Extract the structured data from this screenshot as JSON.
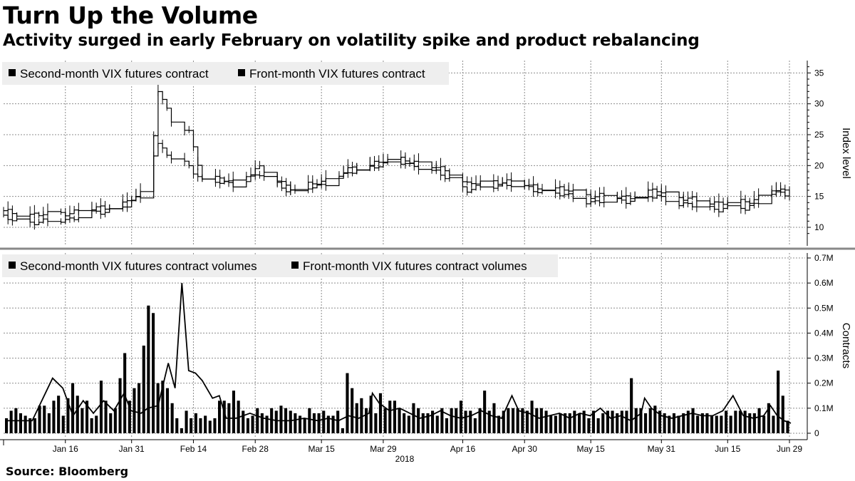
{
  "title": "Turn Up the Volume",
  "subtitle": "Activity surged in early February on volatility spike and product rebalancing",
  "source": "Source: Bloomberg",
  "colors": {
    "series": "#000000",
    "grid": "#8c8c8c",
    "legend_bg": "#eeeeee",
    "separator": "#888888"
  },
  "chart_data": [
    {
      "type": "line",
      "ylabel": "Index level",
      "ylim": [
        7,
        37
      ],
      "yticks": [
        "10",
        "15",
        "20",
        "25",
        "30",
        "35"
      ],
      "x_start": "2018-01-02",
      "x_end": "2018-06-29",
      "x_tick_dates": [
        "2018-01-16",
        "2018-01-31",
        "2018-02-14",
        "2018-02-28",
        "2018-03-15",
        "2018-03-29",
        "2018-04-16",
        "2018-04-30",
        "2018-05-15",
        "2018-05-31",
        "2018-06-15",
        "2018-06-29"
      ],
      "x_tick_labels": [
        "Jan 16",
        "Jan 31",
        "Feb 14",
        "Feb 28",
        "Mar 15",
        "Mar 29",
        "Apr 16",
        "Apr 30",
        "May 15",
        "May 31",
        "Jun 15",
        "Jun 29"
      ],
      "year_label": "2018",
      "grid": true,
      "legend": "top-left",
      "series": [
        {
          "name": "Second-month VIX futures contract",
          "x": [
            "2018-01-02",
            "2018-01-10",
            "2018-01-18",
            "2018-01-24",
            "2018-01-30",
            "2018-02-02",
            "2018-02-05",
            "2018-02-06",
            "2018-02-09",
            "2018-02-13",
            "2018-02-16",
            "2018-02-23",
            "2018-03-01",
            "2018-03-09",
            "2018-03-19",
            "2018-03-22",
            "2018-03-27",
            "2018-04-03",
            "2018-04-13",
            "2018-04-17",
            "2018-04-25",
            "2018-05-03",
            "2018-05-10",
            "2018-05-16",
            "2018-05-25",
            "2018-05-30",
            "2018-06-06",
            "2018-06-13",
            "2018-06-19",
            "2018-06-25",
            "2018-06-29"
          ],
          "y": [
            12.5,
            12.0,
            12.5,
            13.2,
            14.0,
            15.5,
            25.0,
            32.5,
            27.0,
            25.5,
            18.0,
            17.5,
            19.5,
            16.0,
            18.5,
            19.5,
            20.5,
            21.0,
            19.0,
            17.0,
            17.5,
            16.5,
            16.0,
            15.0,
            15.0,
            16.0,
            14.5,
            14.0,
            14.0,
            16.0,
            15.6
          ]
        },
        {
          "name": "Front-month VIX futures contract",
          "x": [
            "2018-01-02",
            "2018-01-10",
            "2018-01-18",
            "2018-01-24",
            "2018-01-30",
            "2018-02-02",
            "2018-02-05",
            "2018-02-06",
            "2018-02-09",
            "2018-02-13",
            "2018-02-16",
            "2018-02-23",
            "2018-03-01",
            "2018-03-09",
            "2018-03-19",
            "2018-03-22",
            "2018-03-27",
            "2018-04-03",
            "2018-04-13",
            "2018-04-17",
            "2018-04-25",
            "2018-05-03",
            "2018-05-10",
            "2018-05-16",
            "2018-05-25",
            "2018-05-30",
            "2018-06-06",
            "2018-06-13",
            "2018-06-19",
            "2018-06-25",
            "2018-06-29"
          ],
          "y": [
            11.5,
            10.7,
            11.5,
            12.5,
            13.5,
            15.0,
            22.0,
            23.5,
            21.0,
            20.0,
            17.5,
            17.0,
            18.5,
            15.5,
            18.0,
            19.0,
            20.0,
            20.5,
            18.0,
            16.0,
            17.0,
            16.0,
            15.0,
            14.0,
            14.5,
            15.0,
            13.5,
            13.0,
            13.0,
            15.5,
            15.3
          ]
        }
      ]
    },
    {
      "type": "bar",
      "ylabel": "Contracts",
      "ylim": [
        -0.02,
        0.72
      ],
      "yticks": [
        "0",
        "0.1M",
        "0.2M",
        "0.3M",
        "0.4M",
        "0.5M",
        "0.6M",
        "0.7M"
      ],
      "yunit": "M",
      "grid": true,
      "legend": "top-left",
      "bar_series": {
        "name": "Second-month VIX futures contract volumes",
        "values": [
          0.06,
          0.09,
          0.1,
          0.08,
          0.07,
          0.06,
          0.06,
          0.11,
          0.11,
          0.08,
          0.13,
          0.15,
          0.07,
          0.14,
          0.2,
          0.15,
          0.1,
          0.13,
          0.06,
          0.07,
          0.21,
          0.13,
          0.08,
          0.1,
          0.22,
          0.32,
          0.13,
          0.18,
          0.2,
          0.35,
          0.51,
          0.48,
          0.2,
          0.21,
          0.18,
          0.12,
          0.06,
          0.02,
          0.09,
          0.06,
          0.08,
          0.06,
          0.07,
          0.05,
          0.06,
          0.13,
          0.13,
          0.12,
          0.17,
          0.13,
          0.09,
          0.06,
          0.07,
          0.1,
          0.08,
          0.07,
          0.1,
          0.09,
          0.11,
          0.1,
          0.09,
          0.08,
          0.07,
          0.06,
          0.1,
          0.08,
          0.08,
          0.09,
          0.07,
          0.07,
          0.09,
          0.02,
          0.24,
          0.18,
          0.12,
          0.14,
          0.1,
          0.15,
          0.08,
          0.16,
          0.1,
          0.13,
          0.13,
          0.1,
          0.08,
          0.07,
          0.12,
          0.1,
          0.08,
          0.08,
          0.09,
          0.07,
          0.1,
          0.06,
          0.1,
          0.1,
          0.13,
          0.09,
          0.09,
          0.06,
          0.1,
          0.17,
          0.09,
          0.12,
          0.07,
          0.09,
          0.1,
          0.1,
          0.1,
          0.1,
          0.09,
          0.13,
          0.1,
          0.1,
          0.09,
          0.07,
          0.07,
          0.08,
          0.08,
          0.08,
          0.09,
          0.08,
          0.09,
          0.06,
          0.09,
          0.06,
          0.08,
          0.09,
          0.09,
          0.08,
          0.09,
          0.09,
          0.22,
          0.1,
          0.1,
          0.08,
          0.1,
          0.11,
          0.09,
          0.08,
          0.07,
          0.08,
          0.07,
          0.08,
          0.09,
          0.1,
          0.07,
          0.08,
          0.08,
          0.07,
          0.07,
          0.07,
          0.09,
          0.07,
          0.09,
          0.09,
          0.09,
          0.08,
          0.08,
          0.1,
          0.07,
          0.12,
          0.07,
          0.25,
          0.15,
          0.05
        ]
      },
      "line_series": {
        "name": "Front-month VIX futures contract volumes",
        "points": [
          [
            0,
            0.05
          ],
          [
            8,
            0.05
          ],
          [
            14,
            0.22
          ],
          [
            17,
            0.18
          ],
          [
            20,
            0.07
          ],
          [
            23,
            0.13
          ],
          [
            26,
            0.08
          ],
          [
            29,
            0.13
          ],
          [
            32,
            0.09
          ],
          [
            35,
            0.16
          ],
          [
            37,
            0.09
          ],
          [
            40,
            0.08
          ],
          [
            42,
            0.1
          ],
          [
            45,
            0.11
          ],
          [
            48,
            0.28
          ],
          [
            50,
            0.18
          ],
          [
            52,
            0.6
          ],
          [
            54,
            0.25
          ],
          [
            56,
            0.24
          ],
          [
            58,
            0.21
          ],
          [
            61,
            0.14
          ],
          [
            63,
            0.15
          ],
          [
            65,
            0.06
          ],
          [
            68,
            0.06
          ],
          [
            72,
            0.08
          ],
          [
            76,
            0.06
          ],
          [
            80,
            0.05
          ],
          [
            84,
            0.05
          ],
          [
            88,
            0.06
          ],
          [
            92,
            0.05
          ],
          [
            95,
            0.06
          ],
          [
            98,
            0.05
          ],
          [
            101,
            0.07
          ],
          [
            104,
            0.06
          ],
          [
            107,
            0.08
          ],
          [
            108,
            0.16
          ],
          [
            110,
            0.12
          ],
          [
            113,
            0.09
          ],
          [
            116,
            0.1
          ],
          [
            119,
            0.08
          ],
          [
            122,
            0.06
          ],
          [
            125,
            0.07
          ],
          [
            128,
            0.09
          ],
          [
            131,
            0.07
          ],
          [
            134,
            0.06
          ],
          [
            137,
            0.07
          ],
          [
            140,
            0.09
          ],
          [
            143,
            0.07
          ],
          [
            146,
            0.06
          ],
          [
            149,
            0.15
          ],
          [
            151,
            0.09
          ],
          [
            154,
            0.08
          ],
          [
            157,
            0.06
          ],
          [
            160,
            0.07
          ],
          [
            163,
            0.08
          ],
          [
            166,
            0.06
          ],
          [
            169,
            0.08
          ],
          [
            172,
            0.07
          ],
          [
            175,
            0.1
          ],
          [
            178,
            0.06
          ],
          [
            181,
            0.07
          ],
          [
            184,
            0.05
          ],
          [
            187,
            0.08
          ],
          [
            188,
            0.14
          ],
          [
            190,
            0.1
          ],
          [
            193,
            0.07
          ],
          [
            196,
            0.06
          ],
          [
            199,
            0.07
          ],
          [
            202,
            0.08
          ],
          [
            205,
            0.07
          ],
          [
            208,
            0.07
          ],
          [
            211,
            0.09
          ],
          [
            214,
            0.15
          ],
          [
            217,
            0.07
          ],
          [
            220,
            0.06
          ],
          [
            223,
            0.07
          ],
          [
            225,
            0.11
          ],
          [
            227,
            0.07
          ],
          [
            229,
            0.05
          ],
          [
            231,
            0.04
          ]
        ],
        "n_points": 232
      }
    }
  ]
}
